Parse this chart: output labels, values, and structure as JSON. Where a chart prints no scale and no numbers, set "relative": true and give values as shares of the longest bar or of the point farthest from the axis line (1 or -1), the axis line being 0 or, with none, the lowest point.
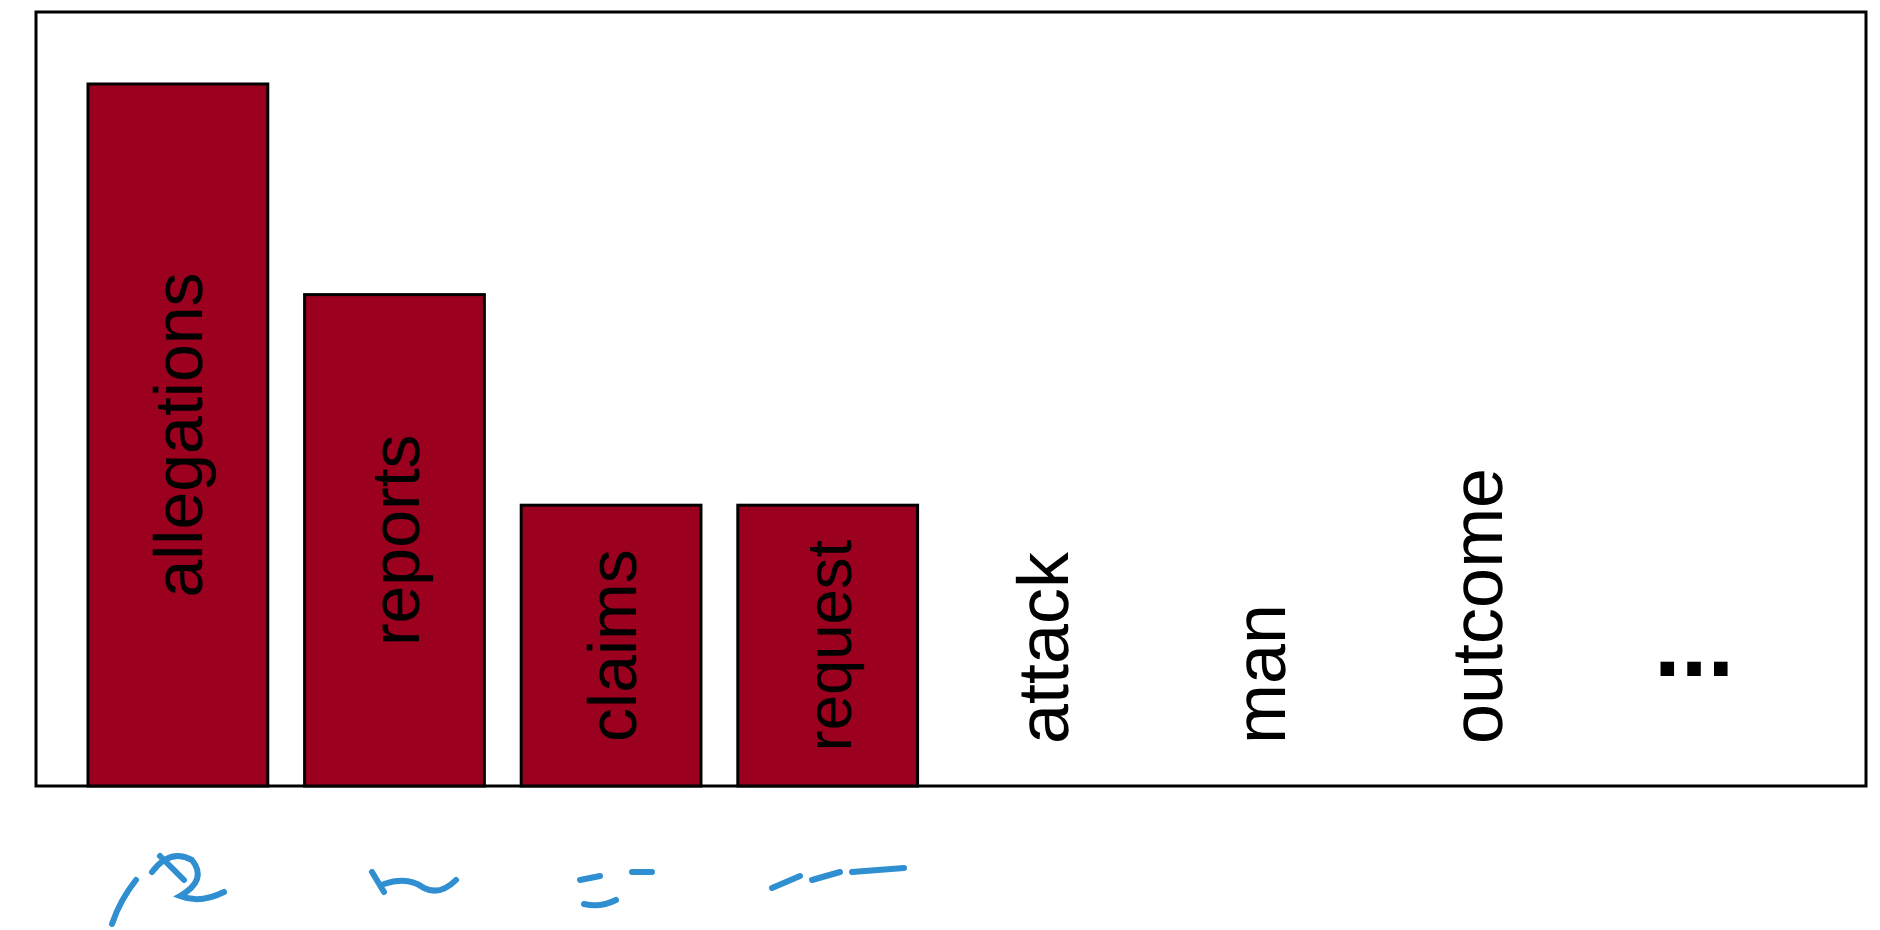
{
  "chart_data": {
    "type": "bar",
    "relative": true,
    "categories": [
      "allegations",
      "reports",
      "claims",
      "request",
      "attack",
      "man",
      "outcome",
      "..."
    ],
    "values": [
      1,
      0.7,
      0.4,
      0.4,
      null,
      null,
      null,
      null
    ],
    "color": "#9b001e"
  }
}
